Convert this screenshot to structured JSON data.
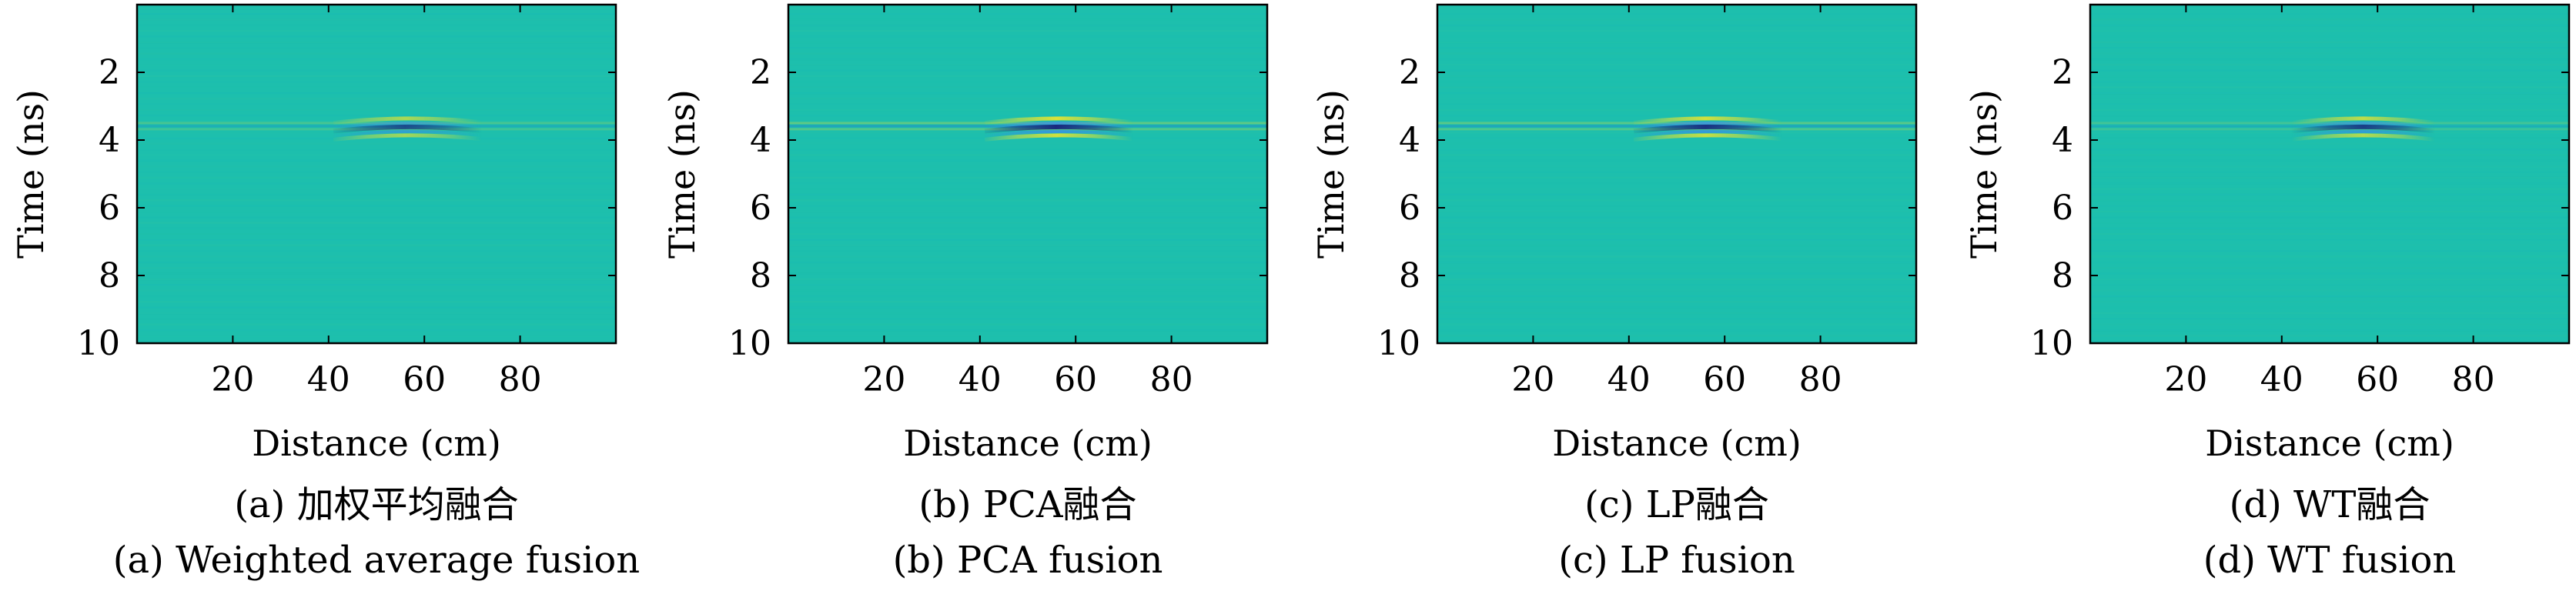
{
  "chart_data": [
    {
      "type": "heatmap",
      "caption_cn": "(a) 加权平均融合",
      "caption_en": "(a) Weighted average fusion",
      "xlabel": "Distance (cm)",
      "ylabel": "Time (ns)",
      "xlim": [
        0,
        100
      ],
      "ylim": [
        0,
        10
      ],
      "xticks": [
        20,
        40,
        60,
        80
      ],
      "yticks": [
        2,
        4,
        6,
        8,
        10
      ],
      "y_reversed": true,
      "colormap": "parula",
      "background_color": "#1dbfad",
      "features": [
        {
          "kind": "horizontal_band",
          "y": 3.6,
          "x_range": [
            0,
            100
          ],
          "intensity": 0.35
        },
        {
          "kind": "hyperbola_reflection",
          "x_center": 57,
          "x_range": [
            40,
            72
          ],
          "y": 3.6,
          "intensity": 0.75
        }
      ]
    },
    {
      "type": "heatmap",
      "caption_cn": "(b) PCA融合",
      "caption_en": "(b) PCA fusion",
      "xlabel": "Distance (cm)",
      "ylabel": "Time (ns)",
      "xlim": [
        0,
        100
      ],
      "ylim": [
        0,
        10
      ],
      "xticks": [
        20,
        40,
        60,
        80
      ],
      "yticks": [
        2,
        4,
        6,
        8,
        10
      ],
      "y_reversed": true,
      "colormap": "parula",
      "background_color": "#1dbfad",
      "features": [
        {
          "kind": "horizontal_band",
          "y": 3.6,
          "x_range": [
            0,
            100
          ],
          "intensity": 0.55
        },
        {
          "kind": "hyperbola_reflection",
          "x_center": 57,
          "x_range": [
            40,
            72
          ],
          "y": 3.6,
          "intensity": 1.0
        }
      ]
    },
    {
      "type": "heatmap",
      "caption_cn": "(c) LP融合",
      "caption_en": "(c) LP fusion",
      "xlabel": "Distance (cm)",
      "ylabel": "Time (ns)",
      "xlim": [
        0,
        100
      ],
      "ylim": [
        0,
        10
      ],
      "xticks": [
        20,
        40,
        60,
        80
      ],
      "yticks": [
        2,
        4,
        6,
        8,
        10
      ],
      "y_reversed": true,
      "colormap": "parula",
      "background_color": "#1dbfad",
      "features": [
        {
          "kind": "horizontal_band",
          "y": 3.6,
          "x_range": [
            0,
            100
          ],
          "intensity": 0.5
        },
        {
          "kind": "hyperbola_reflection",
          "x_center": 57,
          "x_range": [
            40,
            72
          ],
          "y": 3.6,
          "intensity": 0.95
        }
      ]
    },
    {
      "type": "heatmap",
      "caption_cn": "(d) WT融合",
      "caption_en": "(d) WT fusion",
      "xlabel": "Distance (cm)",
      "ylabel": "Time (ns)",
      "xlim": [
        0,
        100
      ],
      "ylim": [
        0,
        10
      ],
      "xticks": [
        20,
        40,
        60,
        80
      ],
      "yticks": [
        2,
        4,
        6,
        8,
        10
      ],
      "y_reversed": true,
      "colormap": "parula",
      "background_color": "#1dbfad",
      "features": [
        {
          "kind": "horizontal_band",
          "y": 3.6,
          "x_range": [
            0,
            100
          ],
          "intensity": 0.3
        },
        {
          "kind": "hyperbola_reflection",
          "x_center": 57,
          "x_range": [
            42,
            72
          ],
          "y": 3.6,
          "intensity": 0.85
        }
      ]
    }
  ]
}
